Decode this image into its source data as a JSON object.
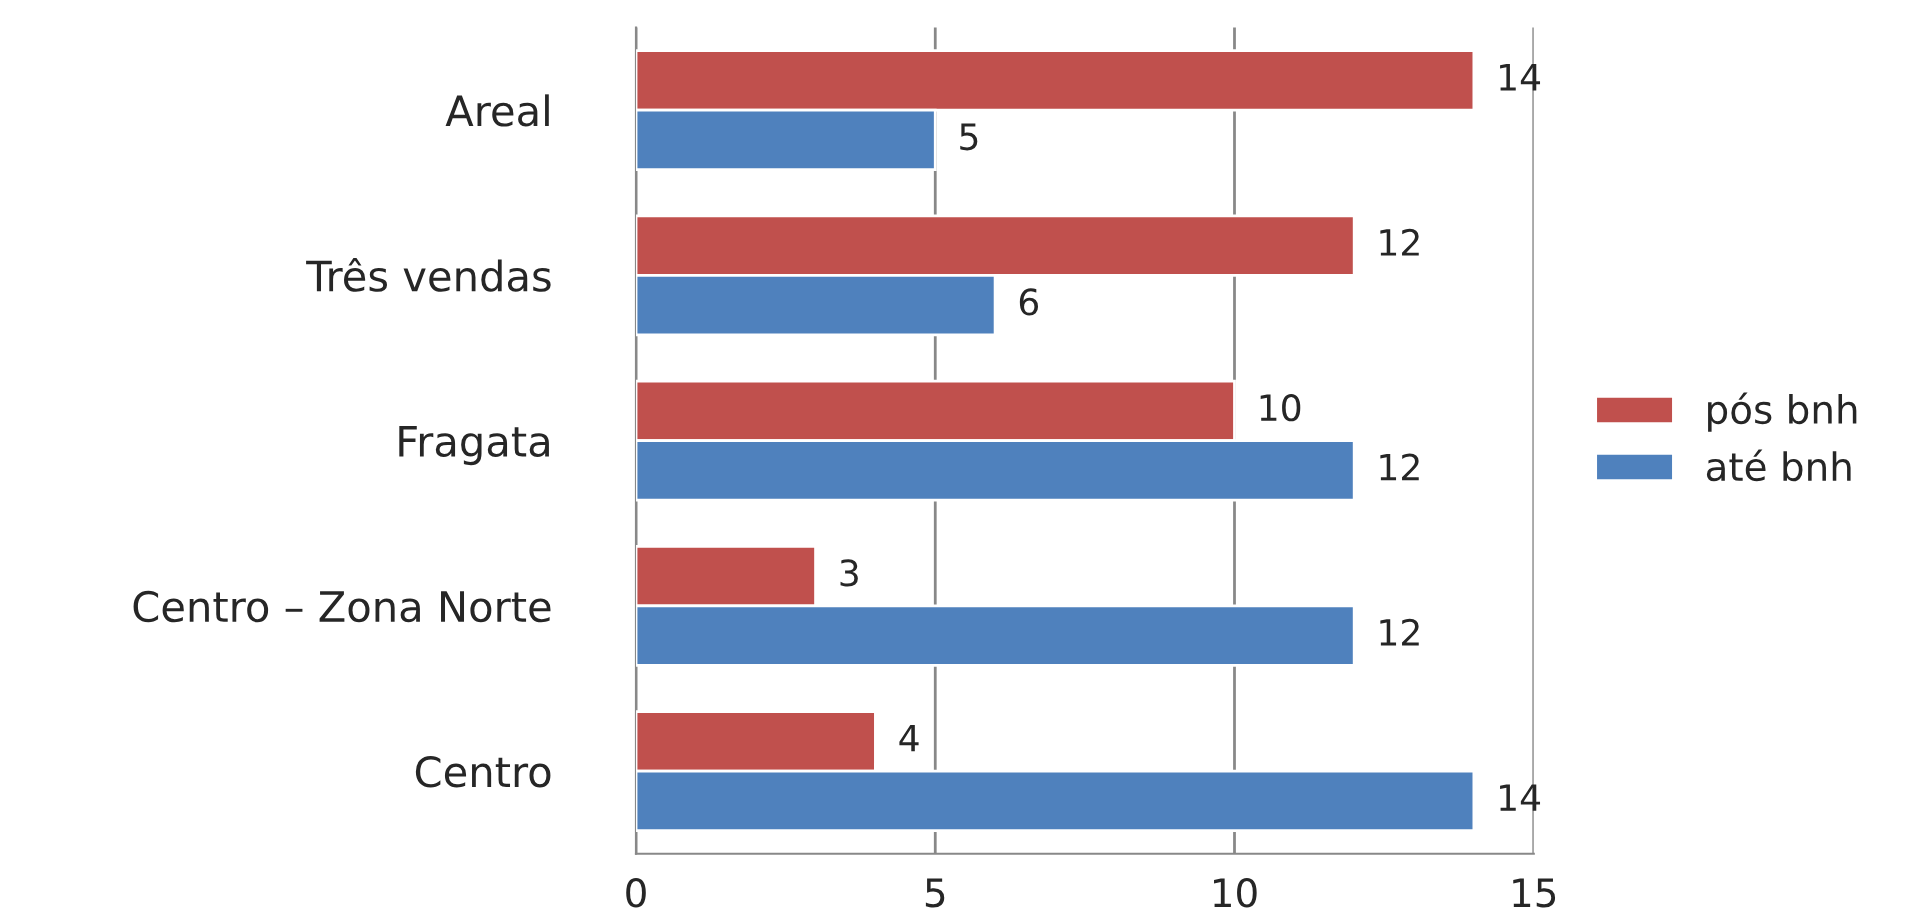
{
  "chart_data": {
    "type": "bar",
    "orientation": "horizontal",
    "categories": [
      "Areal",
      "Três vendas",
      "Fragata",
      "Centro – Zona Norte",
      "Centro"
    ],
    "series": [
      {
        "name": "pós bnh",
        "color": "#c0504d",
        "values": [
          14,
          12,
          10,
          3,
          4
        ]
      },
      {
        "name": "até bnh",
        "color": "#4f81bd",
        "values": [
          5,
          6,
          12,
          12,
          14
        ]
      }
    ],
    "xlim": [
      0,
      15
    ],
    "xticks": [
      0,
      5,
      10,
      15
    ],
    "grid": "x",
    "legend": "right",
    "data_labels": true
  }
}
